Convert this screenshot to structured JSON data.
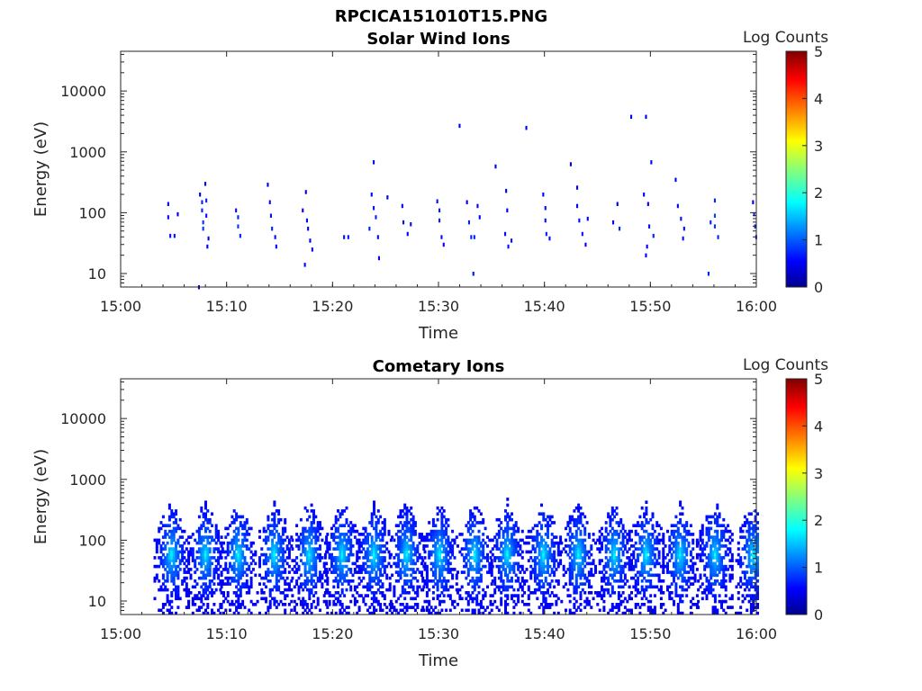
{
  "figure_title": "RPCICA151010T15.PNG",
  "chart_data": [
    {
      "type": "heatmap",
      "title": "Solar Wind Ions",
      "xlabel": "Time",
      "ylabel": "Energy (eV)",
      "x_range": [
        "15:00",
        "16:00"
      ],
      "x_ticks": [
        "15:00",
        "15:10",
        "15:20",
        "15:30",
        "15:40",
        "15:50",
        "16:00"
      ],
      "y_scale": "log",
      "y_range": [
        6,
        45000
      ],
      "y_ticks": [
        10,
        100,
        1000,
        10000
      ],
      "y_tick_labels": [
        "10",
        "100",
        "1000",
        "10000"
      ],
      "colorbar": {
        "label": "Log Counts",
        "range": [
          0,
          5
        ],
        "ticks": [
          "0",
          "1",
          "2",
          "3",
          "4",
          "5"
        ],
        "colormap": "jet"
      },
      "grid": false,
      "points": [
        {
          "t": 4.4,
          "e": 140,
          "v": 0.3
        },
        {
          "t": 4.4,
          "e": 85,
          "v": 0.4
        },
        {
          "t": 4.6,
          "e": 42,
          "v": 0.5
        },
        {
          "t": 5.0,
          "e": 42,
          "v": 0.5
        },
        {
          "t": 5.3,
          "e": 95,
          "v": 0.3
        },
        {
          "t": 7.3,
          "e": 6,
          "v": 0.2
        },
        {
          "t": 7.4,
          "e": 200,
          "v": 0.3
        },
        {
          "t": 7.6,
          "e": 150,
          "v": 0.6
        },
        {
          "t": 7.6,
          "e": 110,
          "v": 0.6
        },
        {
          "t": 7.7,
          "e": 70,
          "v": 0.7
        },
        {
          "t": 7.7,
          "e": 55,
          "v": 0.7
        },
        {
          "t": 7.9,
          "e": 300,
          "v": 0.3
        },
        {
          "t": 8.0,
          "e": 160,
          "v": 0.6
        },
        {
          "t": 8.0,
          "e": 90,
          "v": 0.5
        },
        {
          "t": 8.2,
          "e": 38,
          "v": 0.4
        },
        {
          "t": 8.1,
          "e": 28,
          "v": 0.4
        },
        {
          "t": 10.8,
          "e": 110,
          "v": 0.5
        },
        {
          "t": 11.0,
          "e": 85,
          "v": 0.6
        },
        {
          "t": 11.0,
          "e": 60,
          "v": 0.7
        },
        {
          "t": 11.2,
          "e": 42,
          "v": 0.6
        },
        {
          "t": 13.8,
          "e": 290,
          "v": 0.3
        },
        {
          "t": 14.0,
          "e": 150,
          "v": 0.5
        },
        {
          "t": 14.1,
          "e": 90,
          "v": 0.5
        },
        {
          "t": 14.2,
          "e": 55,
          "v": 0.6
        },
        {
          "t": 14.5,
          "e": 40,
          "v": 0.5
        },
        {
          "t": 14.6,
          "e": 28,
          "v": 0.4
        },
        {
          "t": 17.1,
          "e": 110,
          "v": 0.4
        },
        {
          "t": 17.4,
          "e": 220,
          "v": 0.3
        },
        {
          "t": 17.5,
          "e": 75,
          "v": 0.5
        },
        {
          "t": 17.6,
          "e": 55,
          "v": 0.4
        },
        {
          "t": 17.3,
          "e": 14,
          "v": 0.4
        },
        {
          "t": 17.8,
          "e": 35,
          "v": 0.4
        },
        {
          "t": 18.0,
          "e": 25,
          "v": 0.3
        },
        {
          "t": 21.0,
          "e": 40,
          "v": 0.5
        },
        {
          "t": 21.4,
          "e": 40,
          "v": 0.5
        },
        {
          "t": 23.4,
          "e": 55,
          "v": 0.6
        },
        {
          "t": 23.6,
          "e": 200,
          "v": 0.4
        },
        {
          "t": 23.8,
          "e": 680,
          "v": 0.3
        },
        {
          "t": 23.8,
          "e": 120,
          "v": 0.5
        },
        {
          "t": 24.0,
          "e": 85,
          "v": 0.6
        },
        {
          "t": 24.2,
          "e": 40,
          "v": 0.5
        },
        {
          "t": 24.3,
          "e": 18,
          "v": 0.4
        },
        {
          "t": 25.1,
          "e": 180,
          "v": 0.3
        },
        {
          "t": 26.5,
          "e": 130,
          "v": 0.4
        },
        {
          "t": 26.6,
          "e": 70,
          "v": 0.5
        },
        {
          "t": 27.0,
          "e": 45,
          "v": 0.4
        },
        {
          "t": 27.3,
          "e": 65,
          "v": 0.5
        },
        {
          "t": 29.8,
          "e": 155,
          "v": 0.5
        },
        {
          "t": 30.0,
          "e": 110,
          "v": 0.6
        },
        {
          "t": 30.0,
          "e": 75,
          "v": 0.6
        },
        {
          "t": 30.2,
          "e": 40,
          "v": 0.5
        },
        {
          "t": 30.4,
          "e": 30,
          "v": 0.4
        },
        {
          "t": 31.9,
          "e": 2700,
          "v": 0.3
        },
        {
          "t": 32.6,
          "e": 150,
          "v": 0.4
        },
        {
          "t": 32.8,
          "e": 70,
          "v": 0.6
        },
        {
          "t": 33.0,
          "e": 40,
          "v": 0.6
        },
        {
          "t": 33.3,
          "e": 40,
          "v": 0.6
        },
        {
          "t": 33.2,
          "e": 10,
          "v": 0.5
        },
        {
          "t": 33.6,
          "e": 130,
          "v": 0.4
        },
        {
          "t": 33.8,
          "e": 85,
          "v": 0.4
        },
        {
          "t": 35.3,
          "e": 580,
          "v": 0.3
        },
        {
          "t": 36.3,
          "e": 230,
          "v": 0.3
        },
        {
          "t": 36.4,
          "e": 110,
          "v": 0.4
        },
        {
          "t": 36.2,
          "e": 45,
          "v": 0.5
        },
        {
          "t": 36.5,
          "e": 28,
          "v": 0.5
        },
        {
          "t": 36.8,
          "e": 35,
          "v": 0.5
        },
        {
          "t": 38.2,
          "e": 2500,
          "v": 0.3
        },
        {
          "t": 39.8,
          "e": 200,
          "v": 0.4
        },
        {
          "t": 40.0,
          "e": 120,
          "v": 0.5
        },
        {
          "t": 40.0,
          "e": 75,
          "v": 0.5
        },
        {
          "t": 40.1,
          "e": 45,
          "v": 0.6
        },
        {
          "t": 40.4,
          "e": 38,
          "v": 0.5
        },
        {
          "t": 42.4,
          "e": 630,
          "v": 0.3
        },
        {
          "t": 43.0,
          "e": 260,
          "v": 0.3
        },
        {
          "t": 43.0,
          "e": 130,
          "v": 0.4
        },
        {
          "t": 43.2,
          "e": 75,
          "v": 0.5
        },
        {
          "t": 43.5,
          "e": 45,
          "v": 0.5
        },
        {
          "t": 43.8,
          "e": 30,
          "v": 0.4
        },
        {
          "t": 44.0,
          "e": 80,
          "v": 0.4
        },
        {
          "t": 46.4,
          "e": 70,
          "v": 0.4
        },
        {
          "t": 46.8,
          "e": 140,
          "v": 0.3
        },
        {
          "t": 47.0,
          "e": 55,
          "v": 0.6
        },
        {
          "t": 48.1,
          "e": 3800,
          "v": 0.3
        },
        {
          "t": 49.5,
          "e": 3800,
          "v": 0.3
        },
        {
          "t": 49.3,
          "e": 200,
          "v": 0.4
        },
        {
          "t": 49.7,
          "e": 140,
          "v": 0.4
        },
        {
          "t": 49.8,
          "e": 60,
          "v": 0.5
        },
        {
          "t": 50.0,
          "e": 680,
          "v": 0.3
        },
        {
          "t": 50.2,
          "e": 42,
          "v": 0.6
        },
        {
          "t": 49.6,
          "e": 28,
          "v": 0.4
        },
        {
          "t": 49.5,
          "e": 20,
          "v": 0.4
        },
        {
          "t": 52.3,
          "e": 350,
          "v": 0.3
        },
        {
          "t": 52.5,
          "e": 130,
          "v": 0.4
        },
        {
          "t": 52.8,
          "e": 80,
          "v": 0.5
        },
        {
          "t": 53.0,
          "e": 38,
          "v": 0.5
        },
        {
          "t": 53.1,
          "e": 55,
          "v": 0.5
        },
        {
          "t": 55.4,
          "e": 10,
          "v": 0.6
        },
        {
          "t": 55.6,
          "e": 70,
          "v": 0.6
        },
        {
          "t": 56.0,
          "e": 160,
          "v": 0.6
        },
        {
          "t": 56.0,
          "e": 90,
          "v": 0.8
        },
        {
          "t": 56.0,
          "e": 60,
          "v": 0.7
        },
        {
          "t": 56.3,
          "e": 40,
          "v": 0.6
        },
        {
          "t": 59.6,
          "e": 150,
          "v": 0.4
        },
        {
          "t": 59.7,
          "e": 95,
          "v": 0.6
        },
        {
          "t": 59.8,
          "e": 60,
          "v": 0.6
        },
        {
          "t": 59.9,
          "e": 40,
          "v": 0.5
        }
      ]
    },
    {
      "type": "heatmap",
      "title": "Cometary Ions",
      "xlabel": "Time",
      "ylabel": "Energy (eV)",
      "x_range": [
        "15:00",
        "16:00"
      ],
      "x_ticks": [
        "15:00",
        "15:10",
        "15:20",
        "15:30",
        "15:40",
        "15:50",
        "16:00"
      ],
      "y_scale": "log",
      "y_range": [
        6,
        45000
      ],
      "y_ticks": [
        10,
        100,
        1000,
        10000
      ],
      "y_tick_labels": [
        "10",
        "100",
        "1000",
        "10000"
      ],
      "colorbar": {
        "label": "Log Counts",
        "range": [
          0,
          5
        ],
        "ticks": [
          "0",
          "1",
          "2",
          "3",
          "4",
          "5"
        ],
        "colormap": "jet"
      },
      "grid": false,
      "bursts_center_min": [
        4.7,
        7.9,
        11.0,
        14.4,
        17.7,
        20.8,
        23.8,
        26.9,
        30.0,
        33.3,
        36.4,
        39.8,
        43.1,
        46.5,
        49.5,
        52.7,
        56.0,
        59.6
      ],
      "burst_energy_range_eV": [
        6,
        500
      ],
      "burst_peak_energy_eV": 55,
      "burst_peak_log_counts": 1.6
    }
  ]
}
